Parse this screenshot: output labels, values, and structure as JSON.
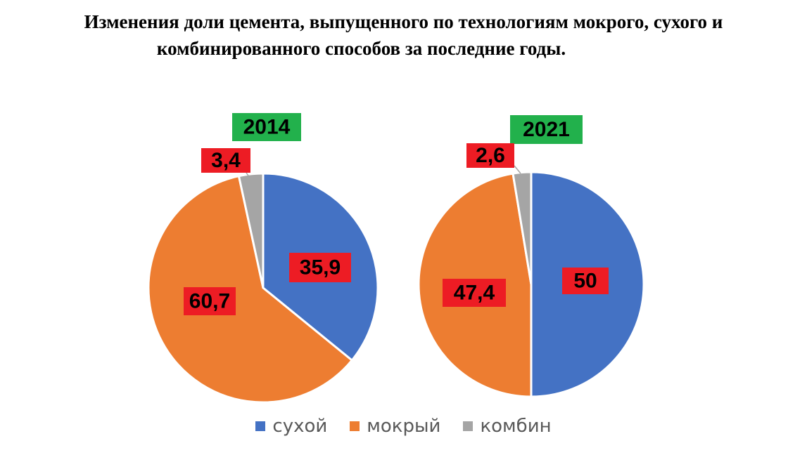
{
  "title": {
    "line1": "Изменения доли цемента, выпущенного по технологиям мокрого, сухого и",
    "line2": "комбинированного способов за последние годы."
  },
  "colors": {
    "сухой": "#4472C4",
    "мокрый": "#ED7D31",
    "комбин": "#A5A5A5",
    "year_badge": "#22B14C",
    "value_badge": "#ED1C24"
  },
  "chart_data": [
    {
      "type": "pie",
      "title": "2014",
      "categories": [
        "сухой",
        "мокрый",
        "комбин"
      ],
      "values": [
        35.9,
        60.7,
        3.4
      ],
      "labels": [
        "35,9",
        "60,7",
        "3,4"
      ],
      "legend_position": "bottom"
    },
    {
      "type": "pie",
      "title": "2021",
      "categories": [
        "сухой",
        "мокрый",
        "комбин"
      ],
      "values": [
        50,
        47.4,
        2.6
      ],
      "labels": [
        "50",
        "47,4",
        "2,6"
      ],
      "legend_position": "bottom"
    }
  ],
  "legend": [
    {
      "label": "сухой",
      "color": "#4472C4"
    },
    {
      "label": "мокрый",
      "color": "#ED7D31"
    },
    {
      "label": "комбин",
      "color": "#A5A5A5"
    }
  ]
}
